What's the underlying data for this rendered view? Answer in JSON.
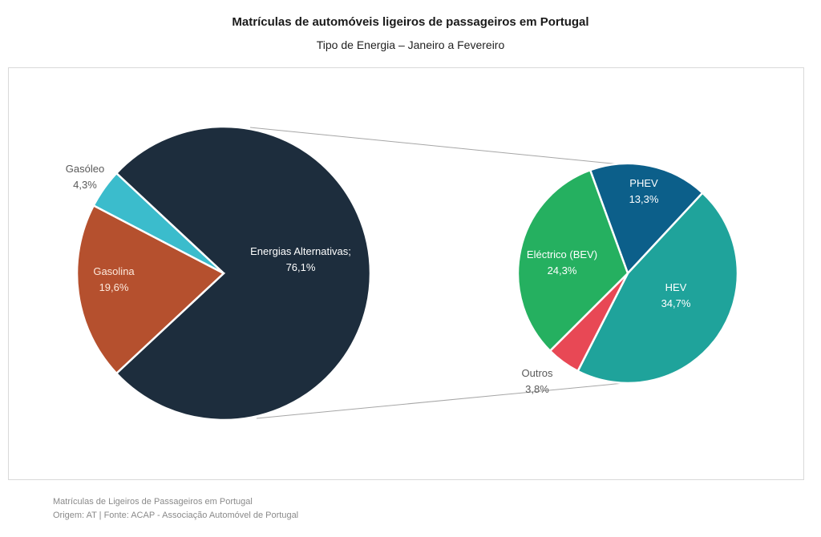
{
  "chart_data": {
    "type": "bar-of-pie",
    "title": "Matrículas de automóveis ligeiros de passageiros em Portugal",
    "subtitle": "Tipo de Energia – Janeiro a Fevereiro",
    "main_pie": {
      "slices": [
        {
          "name": "Energias Alternativas;",
          "value": 76.1,
          "label": "76,1%",
          "color": "#1d2d3d",
          "label_color": "#ffffff"
        },
        {
          "name": "Gasolina",
          "value": 19.6,
          "label": "19,6%",
          "color": "#b5502e",
          "label_color": "#fde9dc"
        },
        {
          "name": "Gasóleo",
          "value": 4.3,
          "label": "4,3%",
          "color": "#3bbccc",
          "label_color": "#595959"
        }
      ]
    },
    "secondary_pie": {
      "parent": "Energias Alternativas",
      "slices": [
        {
          "name": "PHEV",
          "value": 13.3,
          "label": "13,3%",
          "color": "#0c5f8a",
          "label_color": "#ffffff"
        },
        {
          "name": "HEV",
          "value": 34.7,
          "label": "34,7%",
          "color": "#1fa39b",
          "label_color": "#ffffff"
        },
        {
          "name": "Outros",
          "value": 3.8,
          "label": "3,8%",
          "color": "#e84855",
          "label_color": "#595959"
        },
        {
          "name": "Eléctrico (BEV)",
          "value": 24.3,
          "label": "24,3%",
          "color": "#25b060",
          "label_color": "#ffffff"
        }
      ]
    }
  },
  "footer": {
    "line1": "Matrículas de Ligeiros de Passageiros em Portugal",
    "line2": "Origem: AT | Fonte: ACAP - Associação Automóvel de Portugal"
  }
}
